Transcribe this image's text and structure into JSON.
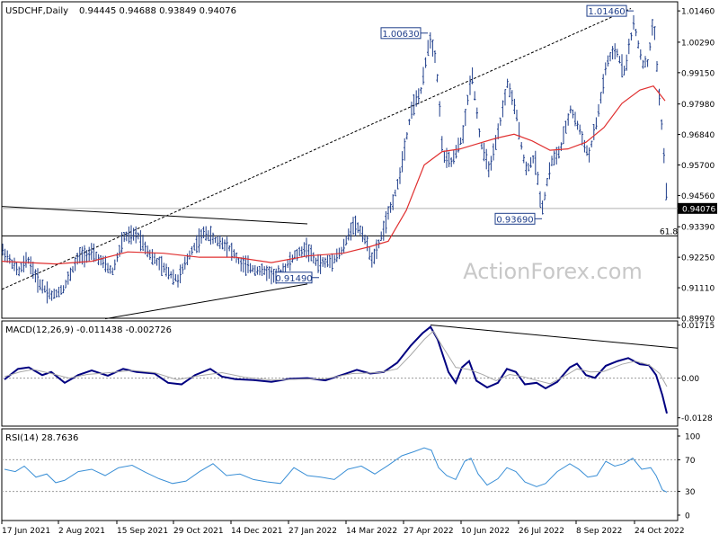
{
  "header": {
    "symbol": "USDCHF,Daily",
    "ohlc": "0.94445 0.94688 0.93849 0.94076"
  },
  "watermark": "ActionForex.com",
  "colors": {
    "price_bars": "#1e3d8a",
    "ema": "#e03030",
    "macd_line": "#000080",
    "macd_signal": "#a8a8a8",
    "rsi_line": "#3a8fd6",
    "trendline": "#000000",
    "axis": "#000000",
    "watermark": "#c8c8c8"
  },
  "chart_data": [
    {
      "type": "candlestick",
      "title": "USDCHF,Daily",
      "ylim": [
        0.8997,
        1.018
      ],
      "y_ticks": [
        "1.01460",
        "1.00290",
        "0.99150",
        "0.97980",
        "0.96840",
        "0.95700",
        "0.94560",
        "0.93390",
        "0.92250",
        "0.91110",
        "0.89970"
      ],
      "x_ticks": [
        "17 Jun 2021",
        "2 Aug 2021",
        "15 Sep 2021",
        "29 Oct 2021",
        "14 Dec 2021",
        "27 Jan 2022",
        "14 Mar 2022",
        "27 Apr 2022",
        "10 Jun 2022",
        "26 Jul 2022",
        "8 Sep 2022",
        "24 Oct 2022"
      ],
      "price_path_ppm": [
        [
          0,
          925000
        ],
        [
          18,
          917000
        ],
        [
          28,
          922000
        ],
        [
          40,
          913000
        ],
        [
          55,
          908000
        ],
        [
          68,
          911000
        ],
        [
          85,
          923000
        ],
        [
          100,
          924000
        ],
        [
          122,
          917000
        ],
        [
          135,
          930000
        ],
        [
          150,
          931000
        ],
        [
          165,
          923000
        ],
        [
          180,
          918000
        ],
        [
          195,
          914000
        ],
        [
          210,
          925000
        ],
        [
          225,
          932000
        ],
        [
          236,
          929000
        ],
        [
          250,
          927000
        ],
        [
          265,
          920000
        ],
        [
          280,
          918000
        ],
        [
          295,
          917000
        ],
        [
          305,
          915000
        ],
        [
          315,
          919000
        ],
        [
          325,
          923000
        ],
        [
          338,
          926000
        ],
        [
          350,
          920000
        ],
        [
          365,
          921000
        ],
        [
          378,
          925000
        ],
        [
          390,
          935000
        ],
        [
          400,
          932000
        ],
        [
          412,
          921000
        ],
        [
          425,
          934000
        ],
        [
          440,
          950000
        ],
        [
          455,
          978000
        ],
        [
          466,
          985000
        ],
        [
          475,
          1005000
        ],
        [
          482,
          997000
        ],
        [
          490,
          960000
        ],
        [
          500,
          958000
        ],
        [
          512,
          968000
        ],
        [
          522,
          992000
        ],
        [
          532,
          965000
        ],
        [
          542,
          955000
        ],
        [
          552,
          970000
        ],
        [
          562,
          988000
        ],
        [
          572,
          975000
        ],
        [
          582,
          955000
        ],
        [
          592,
          960000
        ],
        [
          600,
          940000
        ],
        [
          610,
          958000
        ],
        [
          620,
          962000
        ],
        [
          632,
          978000
        ],
        [
          642,
          970000
        ],
        [
          652,
          960000
        ],
        [
          662,
          975000
        ],
        [
          672,
          995000
        ],
        [
          682,
          1000000
        ],
        [
          692,
          992000
        ],
        [
          702,
          1010000
        ],
        [
          712,
          995000
        ],
        [
          718,
          995000
        ],
        [
          724,
          1012000
        ],
        [
          730,
          985000
        ],
        [
          735,
          965000
        ],
        [
          740,
          938000
        ]
      ],
      "ema_path_ppm": [
        [
          0,
          921000
        ],
        [
          60,
          920000
        ],
        [
          100,
          921000
        ],
        [
          140,
          924500
        ],
        [
          180,
          924000
        ],
        [
          220,
          922500
        ],
        [
          260,
          922500
        ],
        [
          300,
          920500
        ],
        [
          340,
          923000
        ],
        [
          380,
          924000
        ],
        [
          410,
          926500
        ],
        [
          430,
          928500
        ],
        [
          450,
          940000
        ],
        [
          470,
          957000
        ],
        [
          490,
          962000
        ],
        [
          510,
          963000
        ],
        [
          530,
          965000
        ],
        [
          550,
          967000
        ],
        [
          570,
          968500
        ],
        [
          590,
          966000
        ],
        [
          610,
          962500
        ],
        [
          630,
          963000
        ],
        [
          650,
          965500
        ],
        [
          670,
          971000
        ],
        [
          690,
          980000
        ],
        [
          710,
          985000
        ],
        [
          725,
          986500
        ],
        [
          738,
          981000
        ]
      ],
      "annotations": [
        {
          "label": "1.00630",
          "price": 1.0063
        },
        {
          "label": "1.01460",
          "price": 1.0146
        },
        {
          "label": "0.93690",
          "price": 0.9369
        },
        {
          "label": "0.91490",
          "price": 0.9149
        },
        {
          "label": "61.8",
          "price": 0.9305
        }
      ],
      "current_price_label": "0.94076",
      "current_price": 0.94076,
      "horizontal_level": 0.9305,
      "trendlines": [
        {
          "name": "upper-triangle",
          "from": [
            0,
            941500
          ],
          "to": [
            340,
            935000
          ]
        },
        {
          "name": "lower-triangle",
          "from": [
            115,
            899500
          ],
          "to": [
            340,
            912500
          ]
        },
        {
          "name": "rising-channel",
          "from": [
            0,
            910500
          ],
          "to": [
            700,
            1015500
          ]
        }
      ]
    },
    {
      "type": "line",
      "title": "MACD(12,26,9) -0.011438 -0.002726",
      "ylim": [
        -0.0155,
        0.0185
      ],
      "y_ticks": [
        "0.01715",
        "0.00",
        "-0.0128"
      ],
      "zero_level": 0,
      "series": [
        {
          "name": "MACD",
          "values_x_ppm": [
            [
              3,
              -400
            ],
            [
              18,
              3000
            ],
            [
              30,
              3500
            ],
            [
              45,
              1000
            ],
            [
              55,
              2000
            ],
            [
              70,
              -1500
            ],
            [
              85,
              1000
            ],
            [
              100,
              2500
            ],
            [
              118,
              800
            ],
            [
              135,
              3000
            ],
            [
              150,
              2000
            ],
            [
              170,
              1500
            ],
            [
              185,
              -1500
            ],
            [
              200,
              -2000
            ],
            [
              215,
              1000
            ],
            [
              232,
              3000
            ],
            [
              245,
              500
            ],
            [
              260,
              -300
            ],
            [
              280,
              -600
            ],
            [
              300,
              -1200
            ],
            [
              320,
              -200
            ],
            [
              340,
              0
            ],
            [
              360,
              -700
            ],
            [
              378,
              1000
            ],
            [
              395,
              2700
            ],
            [
              410,
              1500
            ],
            [
              425,
              2000
            ],
            [
              440,
              5000
            ],
            [
              455,
              10500
            ],
            [
              468,
              14500
            ],
            [
              477,
              16600
            ],
            [
              485,
              12500
            ],
            [
              497,
              2000
            ],
            [
              505,
              -1500
            ],
            [
              512,
              3500
            ],
            [
              520,
              5500
            ],
            [
              528,
              -800
            ],
            [
              540,
              -3000
            ],
            [
              552,
              -1500
            ],
            [
              562,
              3000
            ],
            [
              572,
              2000
            ],
            [
              582,
              -2000
            ],
            [
              595,
              -1500
            ],
            [
              605,
              -3300
            ],
            [
              618,
              -1200
            ],
            [
              632,
              3500
            ],
            [
              640,
              4700
            ],
            [
              650,
              1000
            ],
            [
              660,
              100
            ],
            [
              672,
              4000
            ],
            [
              685,
              5500
            ],
            [
              697,
              6500
            ],
            [
              710,
              4500
            ],
            [
              720,
              4200
            ],
            [
              728,
              1000
            ],
            [
              735,
              -5500
            ],
            [
              740,
              -11400
            ]
          ]
        },
        {
          "name": "Signal",
          "values_x_ppm": [
            [
              3,
              500
            ],
            [
              20,
              2000
            ],
            [
              35,
              2800
            ],
            [
              55,
              1500
            ],
            [
              75,
              0
            ],
            [
              95,
              1200
            ],
            [
              120,
              1800
            ],
            [
              145,
              2500
            ],
            [
              170,
              1800
            ],
            [
              195,
              -500
            ],
            [
              220,
              800
            ],
            [
              245,
              1800
            ],
            [
              270,
              300
            ],
            [
              300,
              -600
            ],
            [
              330,
              -300
            ],
            [
              360,
              -200
            ],
            [
              390,
              1500
            ],
            [
              420,
              1800
            ],
            [
              440,
              3000
            ],
            [
              455,
              7500
            ],
            [
              470,
              12500
            ],
            [
              480,
              15200
            ],
            [
              492,
              9500
            ],
            [
              505,
              3500
            ],
            [
              520,
              2800
            ],
            [
              535,
              1200
            ],
            [
              550,
              -800
            ],
            [
              565,
              1200
            ],
            [
              580,
              500
            ],
            [
              595,
              -700
            ],
            [
              610,
              -1800
            ],
            [
              625,
              500
            ],
            [
              640,
              3000
            ],
            [
              655,
              2000
            ],
            [
              670,
              2200
            ],
            [
              690,
              4500
            ],
            [
              705,
              5500
            ],
            [
              720,
              4300
            ],
            [
              732,
              1500
            ],
            [
              740,
              -2700
            ]
          ]
        }
      ],
      "trendline": {
        "from": [
          477,
          17200
        ],
        "to": [
          752,
          9700
        ]
      }
    },
    {
      "type": "line",
      "title": "RSI(14) 28.7636",
      "ylim": [
        0,
        100
      ],
      "y_ticks": [
        "100",
        "70",
        "30",
        "0"
      ],
      "levels": [
        70,
        30
      ],
      "series": [
        {
          "name": "RSI",
          "values_x": [
            [
              3,
              58
            ],
            [
              15,
              55
            ],
            [
              25,
              62
            ],
            [
              38,
              48
            ],
            [
              50,
              52
            ],
            [
              60,
              41
            ],
            [
              70,
              44
            ],
            [
              85,
              55
            ],
            [
              100,
              58
            ],
            [
              115,
              50
            ],
            [
              130,
              60
            ],
            [
              145,
              63
            ],
            [
              160,
              54
            ],
            [
              175,
              46
            ],
            [
              190,
              40
            ],
            [
              205,
              43
            ],
            [
              220,
              55
            ],
            [
              235,
              65
            ],
            [
              250,
              50
            ],
            [
              265,
              52
            ],
            [
              280,
              45
            ],
            [
              295,
              42
            ],
            [
              310,
              40
            ],
            [
              325,
              60
            ],
            [
              340,
              50
            ],
            [
              355,
              48
            ],
            [
              370,
              45
            ],
            [
              385,
              58
            ],
            [
              400,
              62
            ],
            [
              415,
              52
            ],
            [
              430,
              63
            ],
            [
              445,
              75
            ],
            [
              458,
              80
            ],
            [
              470,
              85
            ],
            [
              478,
              82
            ],
            [
              486,
              60
            ],
            [
              495,
              50
            ],
            [
              505,
              45
            ],
            [
              515,
              68
            ],
            [
              522,
              72
            ],
            [
              530,
              52
            ],
            [
              540,
              38
            ],
            [
              552,
              46
            ],
            [
              562,
              60
            ],
            [
              572,
              55
            ],
            [
              582,
              42
            ],
            [
              595,
              36
            ],
            [
              605,
              40
            ],
            [
              618,
              55
            ],
            [
              632,
              65
            ],
            [
              642,
              58
            ],
            [
              652,
              48
            ],
            [
              662,
              50
            ],
            [
              672,
              68
            ],
            [
              682,
              62
            ],
            [
              692,
              65
            ],
            [
              702,
              72
            ],
            [
              712,
              58
            ],
            [
              722,
              60
            ],
            [
              728,
              50
            ],
            [
              735,
              32
            ],
            [
              740,
              29
            ]
          ]
        }
      ]
    }
  ]
}
